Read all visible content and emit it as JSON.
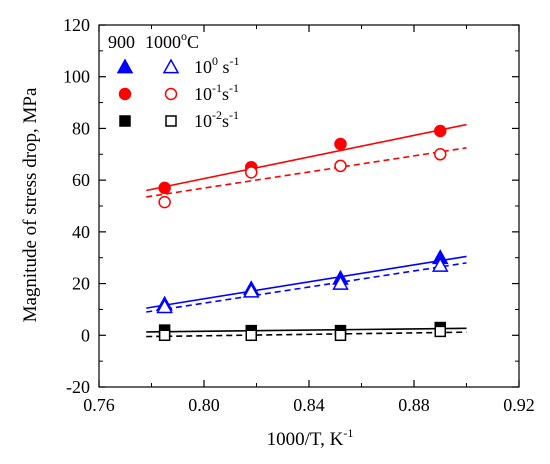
{
  "chart_data": {
    "type": "scatter",
    "title": "",
    "xlabel": "1000/T, K",
    "xlabel_sup": "-1",
    "ylabel": "Magnitude of stress drop, MPa",
    "xlim": [
      0.76,
      0.92
    ],
    "ylim": [
      -20,
      120
    ],
    "xticks": [
      0.76,
      0.8,
      0.84,
      0.88,
      0.92
    ],
    "xtick_labels": [
      "0.76",
      "0.80",
      "0.84",
      "0.88",
      "0.92"
    ],
    "yticks": [
      -20,
      0,
      20,
      40,
      60,
      80,
      100,
      120
    ],
    "ytick_labels": [
      "-20",
      "0",
      "20",
      "40",
      "60",
      "80",
      "100",
      "120"
    ],
    "grid": false,
    "legend": {
      "placement": "top-left",
      "header_left": "900",
      "header_right": "1000",
      "header_unit_sup": "o",
      "header_unit": "C",
      "rows": [
        {
          "base": "10",
          "exp": "0",
          "gap": " ",
          "unit": "s",
          "unit_exp": "-1",
          "marker": "triangle",
          "color": "#0000ff"
        },
        {
          "base": "10",
          "exp": "-1",
          "gap": "",
          "unit": "s",
          "unit_exp": "-1",
          "marker": "circle",
          "color": "#ff0000"
        },
        {
          "base": "10",
          "exp": "-2",
          "gap": "",
          "unit": "s",
          "unit_exp": "-1",
          "marker": "square",
          "color": "#000000"
        }
      ]
    },
    "series": [
      {
        "temperature": "900",
        "strain_rate": "10^0 s^-1",
        "marker": "triangle",
        "filled": true,
        "color": "#0000ff",
        "x": [
          0.785,
          0.818,
          0.852,
          0.89
        ],
        "y": [
          12,
          18,
          22,
          30
        ],
        "fit": {
          "x": [
            0.778,
            0.9
          ],
          "y": [
            10.5,
            30.5
          ],
          "dash": false
        }
      },
      {
        "temperature": "1000",
        "strain_rate": "10^0 s^-1",
        "marker": "triangle",
        "filled": false,
        "color": "#0000ff",
        "x": [
          0.785,
          0.818,
          0.852,
          0.89
        ],
        "y": [
          11,
          17,
          20,
          27
        ],
        "fit": {
          "x": [
            0.778,
            0.9
          ],
          "y": [
            9.0,
            28.0
          ],
          "dash": true
        }
      },
      {
        "temperature": "900",
        "strain_rate": "10^-1 s^-1",
        "marker": "circle",
        "filled": true,
        "color": "#ff0000",
        "x": [
          0.785,
          0.818,
          0.852,
          0.89
        ],
        "y": [
          57,
          65,
          74,
          79
        ],
        "fit": {
          "x": [
            0.778,
            0.9
          ],
          "y": [
            56.0,
            81.5
          ],
          "dash": false
        }
      },
      {
        "temperature": "1000",
        "strain_rate": "10^-1 s^-1",
        "marker": "circle",
        "filled": false,
        "color": "#ff0000",
        "x": [
          0.785,
          0.818,
          0.852,
          0.89
        ],
        "y": [
          51.5,
          63,
          65.5,
          70
        ],
        "fit": {
          "x": [
            0.778,
            0.9
          ],
          "y": [
            53.5,
            72.5
          ],
          "dash": true
        }
      },
      {
        "temperature": "900",
        "strain_rate": "10^-2 s^-1",
        "marker": "square",
        "filled": true,
        "color": "#000000",
        "x": [
          0.785,
          0.818,
          0.852,
          0.89
        ],
        "y": [
          2,
          1.8,
          1.8,
          3
        ],
        "fit": {
          "x": [
            0.778,
            0.9
          ],
          "y": [
            1.3,
            2.7
          ],
          "dash": false
        }
      },
      {
        "temperature": "1000",
        "strain_rate": "10^-2 s^-1",
        "marker": "square",
        "filled": false,
        "color": "#000000",
        "x": [
          0.785,
          0.818,
          0.852,
          0.89
        ],
        "y": [
          0,
          0,
          0,
          1.5
        ],
        "fit": {
          "x": [
            0.778,
            0.9
          ],
          "y": [
            -0.5,
            1.2
          ],
          "dash": true
        }
      }
    ]
  }
}
